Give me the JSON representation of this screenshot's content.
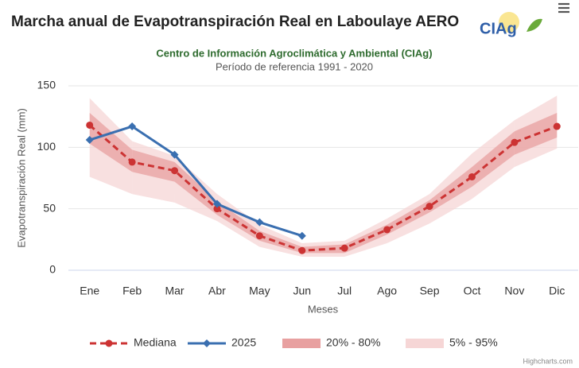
{
  "logo_text": "CIAg",
  "chart_data": {
    "type": "line",
    "title": "Marcha anual de Evapotranspiración Real en Laboulaye AERO",
    "subtitle": "Centro de Información Agroclimática y Ambiental (CIAg)",
    "subtitle2": "Período de referencia 1991 - 2020",
    "y_label": "Evapotranspiración Real (mm)",
    "x_label": "Meses",
    "credit": "Highcharts.com",
    "categories": [
      "Ene",
      "Feb",
      "Mar",
      "Abr",
      "May",
      "Jun",
      "Jul",
      "Ago",
      "Sep",
      "Oct",
      "Nov",
      "Dic"
    ],
    "ylim": [
      0,
      150
    ],
    "yticks": [
      0,
      50,
      100,
      150
    ],
    "grid": true,
    "series": [
      {
        "name": "Mediana",
        "type": "line",
        "color": "#cc3333",
        "dashed": true,
        "marker": "circle",
        "values": [
          118,
          88,
          81,
          50,
          28,
          16,
          18,
          33,
          52,
          76,
          104,
          117
        ]
      },
      {
        "name": "2025",
        "type": "line",
        "color": "#3a6fb0",
        "dashed": false,
        "marker": "diamond",
        "values": [
          106,
          117,
          94,
          54,
          39,
          28,
          null,
          null,
          null,
          null,
          null,
          null
        ]
      },
      {
        "name": "20% - 80%",
        "type": "arearange",
        "color": "#e8a0a0",
        "low": [
          103,
          80,
          72,
          45,
          24,
          14,
          14,
          29,
          47,
          68,
          94,
          108
        ],
        "high": [
          128,
          98,
          88,
          56,
          32,
          19,
          21,
          37,
          57,
          84,
          113,
          128
        ]
      },
      {
        "name": "5% - 95%",
        "type": "arearange",
        "color": "#f6d6d6",
        "low": [
          76,
          62,
          55,
          40,
          19,
          11,
          11,
          22,
          38,
          58,
          84,
          99
        ],
        "high": [
          140,
          105,
          93,
          62,
          37,
          22,
          24,
          42,
          62,
          95,
          122,
          142
        ]
      }
    ]
  }
}
